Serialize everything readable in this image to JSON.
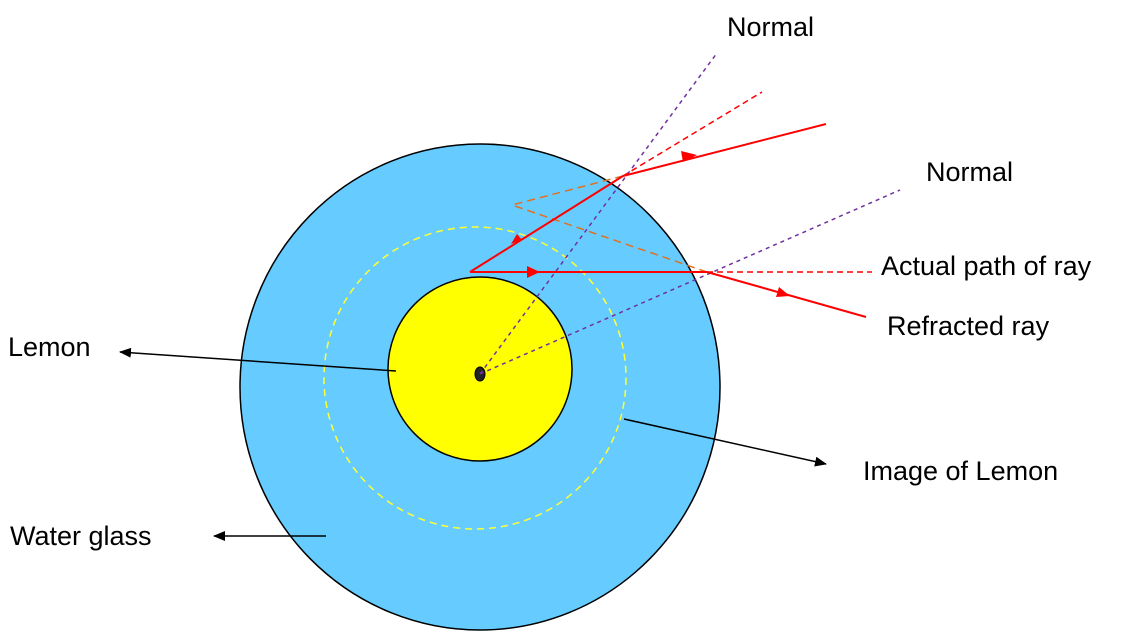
{
  "labels": {
    "normal_top": "Normal",
    "normal_right": "Normal",
    "actual_path": "Actual path of ray",
    "refracted_ray": "Refracted ray",
    "lemon": "Lemon",
    "image_of_lemon": "Image of Lemon",
    "water_glass": "Water glass"
  },
  "colors": {
    "water": "#66ccff",
    "lemon": "#ffff00",
    "image_circle": "#ffff33",
    "ray": "#ff0000",
    "normal_line": "#7030a0",
    "extension_line": "#e07020",
    "arrow": "#000000",
    "outline": "#000000"
  }
}
